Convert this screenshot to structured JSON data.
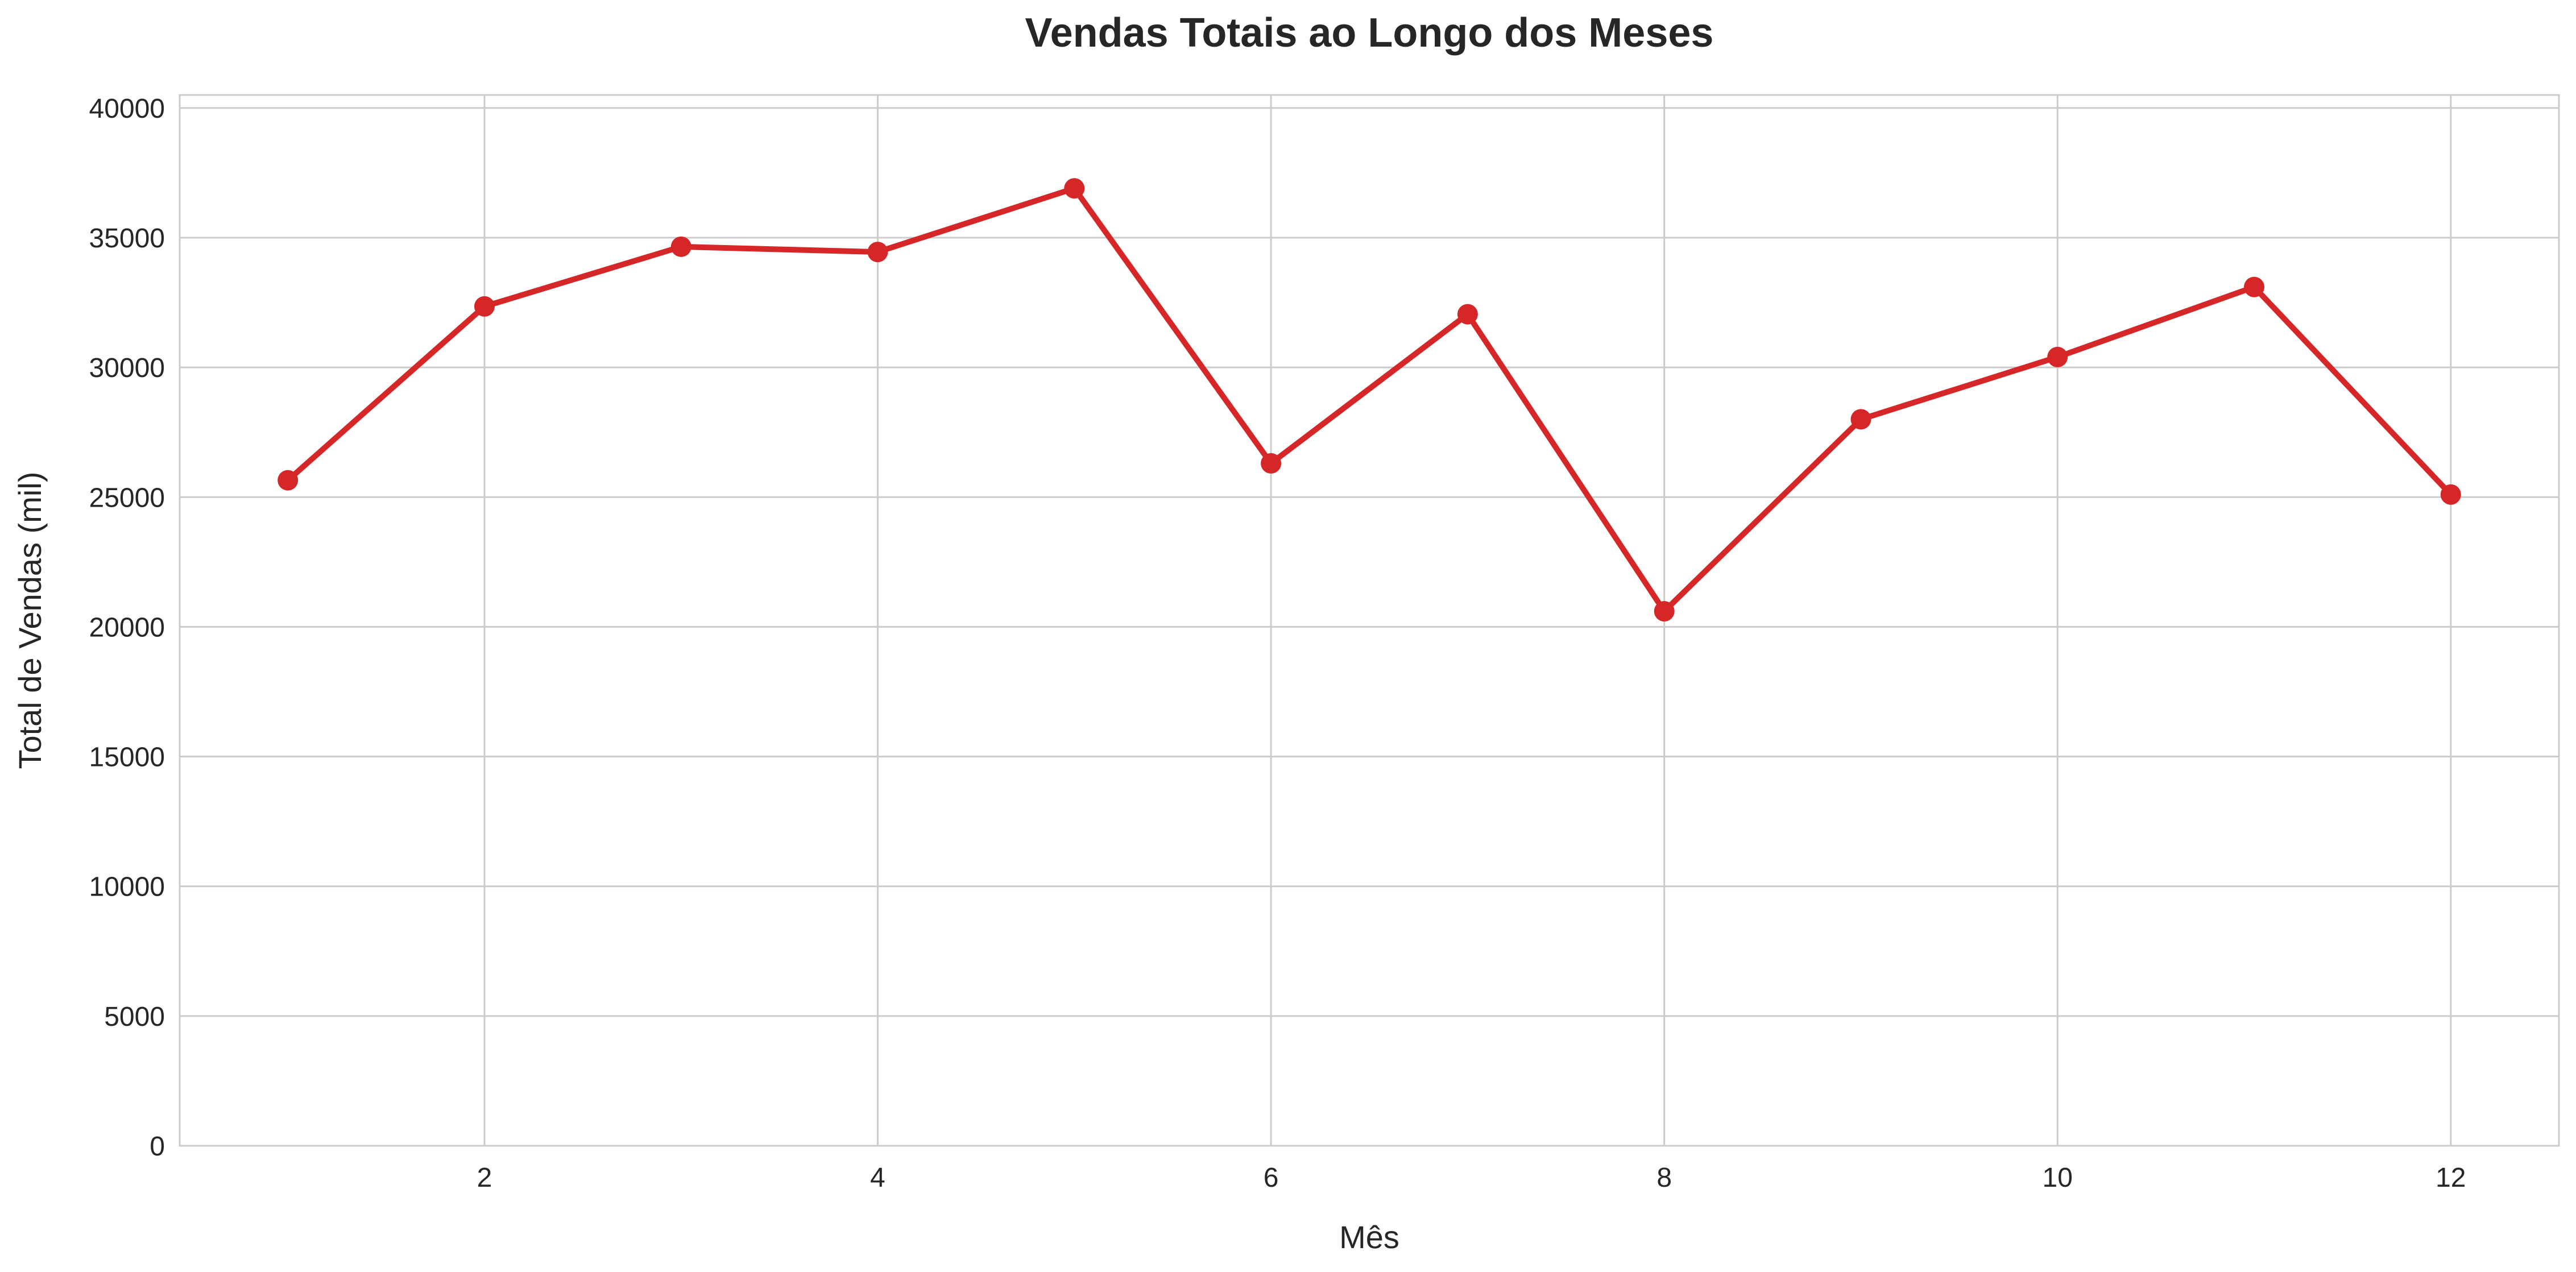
{
  "chart_data": {
    "type": "line",
    "title": "Vendas Totais ao Longo dos Meses",
    "xlabel": "Mês",
    "ylabel": "Total de Vendas (mil)",
    "x": [
      1,
      2,
      3,
      4,
      5,
      6,
      7,
      8,
      9,
      10,
      11,
      12
    ],
    "series": [
      {
        "values": [
          25650,
          32350,
          34650,
          34450,
          36900,
          26300,
          32050,
          20600,
          28000,
          30400,
          33100,
          25100
        ]
      }
    ],
    "xlim": [
      0.45,
      12.55
    ],
    "ylim": [
      0,
      40500
    ],
    "xticks": [
      2,
      4,
      6,
      8,
      10,
      12
    ],
    "yticks": [
      0,
      5000,
      10000,
      15000,
      20000,
      25000,
      30000,
      35000,
      40000
    ],
    "grid": true,
    "legend": "none",
    "colors": {
      "line": "#d62728",
      "grid": "#cccccc",
      "text": "#262626"
    }
  }
}
